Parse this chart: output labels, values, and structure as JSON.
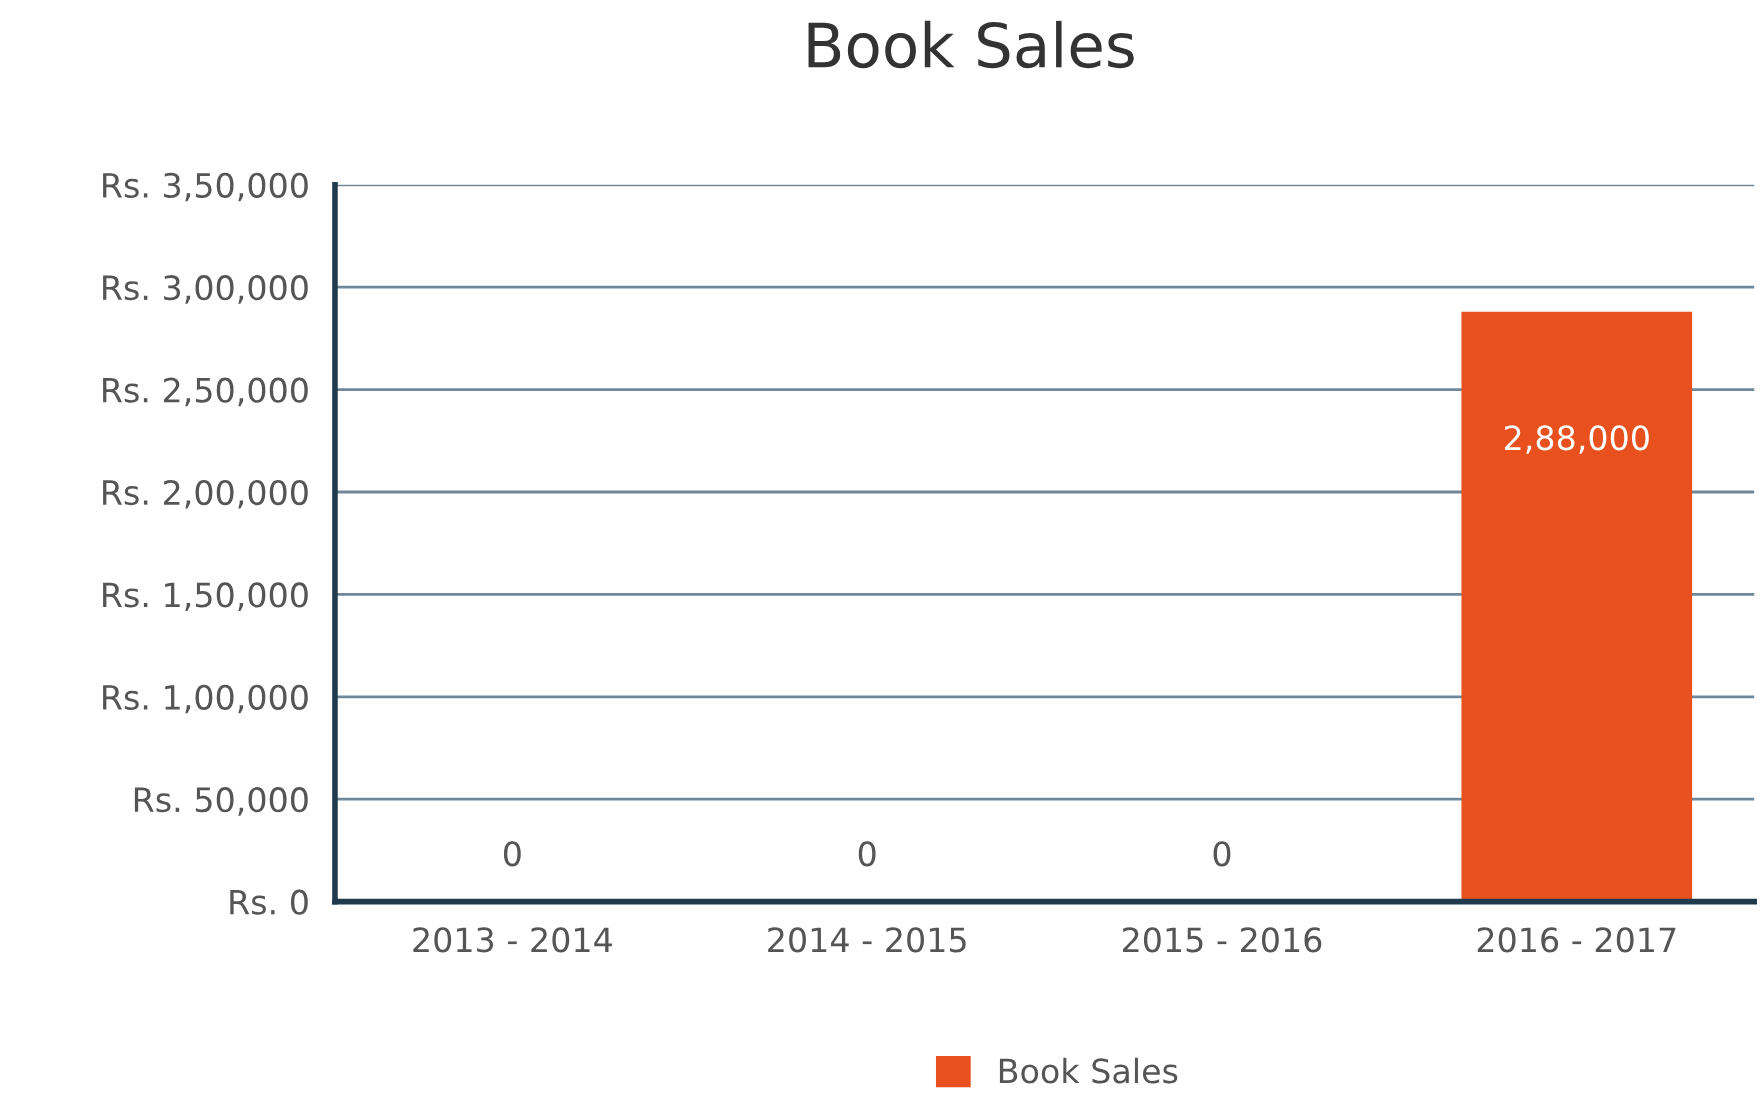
{
  "chart_data": {
    "type": "bar",
    "title": "Book Sales",
    "categories": [
      "2013 - 2014",
      "2014 - 2015",
      "2015 - 2016",
      "2016 - 2017"
    ],
    "series": [
      {
        "name": "Book Sales",
        "color": "#e8501e",
        "values": [
          0,
          0,
          0,
          288000
        ],
        "value_labels": [
          "0",
          "0",
          "0",
          "2,88,000"
        ]
      }
    ],
    "ylim": [
      0,
      350000
    ],
    "yticks": [
      {
        "value": 0,
        "label": "Rs. 0"
      },
      {
        "value": 50000,
        "label": "Rs. 50,000"
      },
      {
        "value": 100000,
        "label": "Rs. 1,00,000"
      },
      {
        "value": 150000,
        "label": "Rs. 1,50,000"
      },
      {
        "value": 200000,
        "label": "Rs. 2,00,000"
      },
      {
        "value": 250000,
        "label": "Rs. 2,50,000"
      },
      {
        "value": 300000,
        "label": "Rs. 3,00,000"
      },
      {
        "value": 350000,
        "label": "Rs. 3,50,000"
      }
    ],
    "grid": "y",
    "legend": "bottom"
  }
}
